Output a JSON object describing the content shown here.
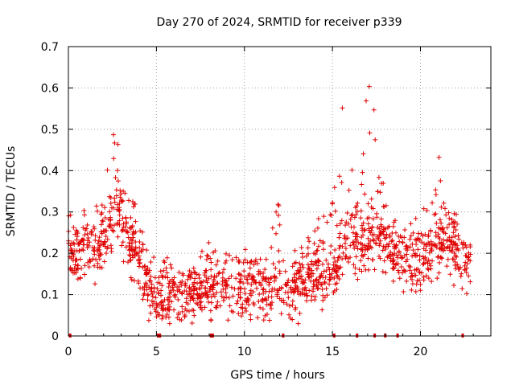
{
  "chart_data": {
    "type": "scatter",
    "title": "Day 270 of 2024, SRMTID for receiver p339",
    "xlabel": "GPS time / hours",
    "ylabel": "SRMTID / TECUs",
    "xlim": [
      0,
      24
    ],
    "ylim": [
      0,
      0.7
    ],
    "xticks": [
      0,
      5,
      10,
      15,
      20
    ],
    "xtick_labels": [
      "0",
      "5",
      "10",
      "15",
      "20"
    ],
    "yticks": [
      0,
      0.1,
      0.2,
      0.3,
      0.4,
      0.5,
      0.6,
      0.7
    ],
    "ytick_labels": [
      "0",
      "0.1",
      "0.2",
      "0.3",
      "0.4",
      "0.5",
      "0.6",
      "0.7"
    ],
    "grid": true,
    "marker": "plus",
    "color": "#e00000",
    "envelope": {
      "hours": [
        0,
        0.5,
        1,
        1.5,
        2,
        2.5,
        3,
        3.5,
        4,
        4.5,
        5,
        5.5,
        6,
        6.5,
        7,
        7.5,
        8,
        8.5,
        9,
        9.5,
        10,
        10.5,
        11,
        11.5,
        12,
        12.5,
        13,
        13.5,
        14,
        14.5,
        15,
        15.5,
        16,
        16.5,
        17,
        17.5,
        18,
        18.5,
        19,
        19.5,
        20,
        20.5,
        21,
        21.5,
        22,
        22.5
      ],
      "typical": [
        0.2,
        0.18,
        0.22,
        0.2,
        0.22,
        0.28,
        0.3,
        0.22,
        0.18,
        0.12,
        0.1,
        0.11,
        0.1,
        0.1,
        0.1,
        0.11,
        0.12,
        0.12,
        0.11,
        0.1,
        0.12,
        0.13,
        0.12,
        0.1,
        0.11,
        0.1,
        0.12,
        0.13,
        0.15,
        0.14,
        0.15,
        0.2,
        0.25,
        0.22,
        0.23,
        0.25,
        0.22,
        0.2,
        0.18,
        0.17,
        0.18,
        0.2,
        0.22,
        0.23,
        0.2,
        0.17
      ],
      "peak": [
        0.31,
        0.25,
        0.33,
        0.35,
        0.32,
        0.51,
        0.45,
        0.38,
        0.3,
        0.2,
        0.19,
        0.2,
        0.17,
        0.15,
        0.16,
        0.2,
        0.23,
        0.23,
        0.2,
        0.2,
        0.22,
        0.19,
        0.2,
        0.3,
        0.33,
        0.25,
        0.2,
        0.25,
        0.28,
        0.3,
        0.35,
        0.57,
        0.45,
        0.4,
        0.63,
        0.56,
        0.36,
        0.3,
        0.25,
        0.28,
        0.3,
        0.35,
        0.46,
        0.3,
        0.3,
        0.22
      ]
    },
    "num_points": 1500,
    "data_gaps_hours": [
      0.1,
      5.1,
      5.2,
      8.1,
      8.2,
      12.2,
      15.1,
      16.4,
      17.4,
      18.0,
      18.7,
      22.4
    ]
  }
}
